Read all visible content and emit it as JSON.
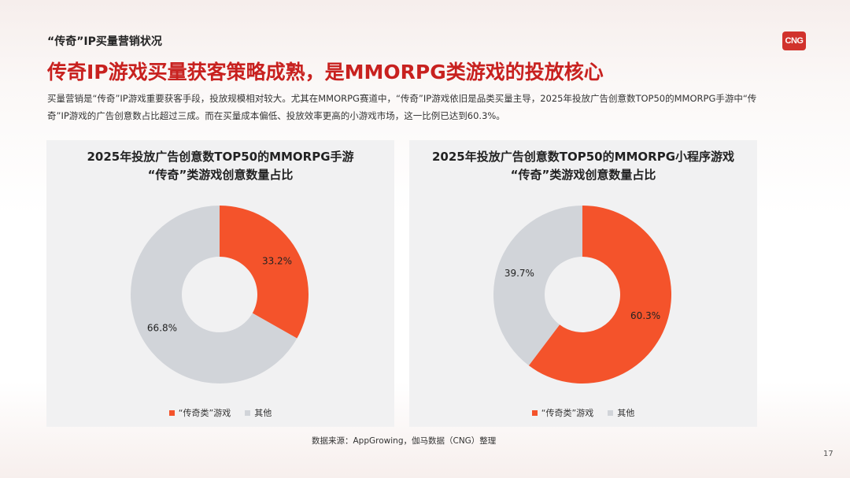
{
  "header": {
    "section_label": "“传奇”IP买量营销状况",
    "logo_text": "CNG",
    "headline": "传奇IP游戏买量获客策略成熟，是MMORPG类游戏的投放核心",
    "body_line1": "买量营销是“传奇”IP游戏重要获客手段，投放规模相对较大。尤其在MMORPG赛道中，“传奇”IP游戏依旧是品类买量主导，2025年投放广告创意数TOP50的MMORPG手游中“传",
    "body_line2": "奇”IP游戏的广告创意数占比超过三成。而在买量成本偏低、投放效率更高的小游戏市场，这一比例已达到60.3%。"
  },
  "colors": {
    "accent": "#f4532b",
    "other": "#d1d4d9",
    "brand": "#c8211f"
  },
  "chart_data": [
    {
      "type": "pie",
      "title_line1": "2025年投放广告创意数TOP50的MMORPG手游",
      "title_line2": "“传奇”类游戏创意数量占比",
      "slices": [
        {
          "label": "“传奇类”游戏",
          "value": 33.2,
          "value_label": "33.2%",
          "color": "#f4532b"
        },
        {
          "label": "其他",
          "value": 66.8,
          "value_label": "66.8%",
          "color": "#d1d4d9"
        }
      ],
      "legend_position": "bottom"
    },
    {
      "type": "pie",
      "title_line1": "2025年投放广告创意数TOP50的MMORPG小程序游戏",
      "title_line2": "“传奇”类游戏创意数量占比",
      "slices": [
        {
          "label": "“传奇类”游戏",
          "value": 60.3,
          "value_label": "60.3%",
          "color": "#f4532b"
        },
        {
          "label": "其他",
          "value": 39.7,
          "value_label": "39.7%",
          "color": "#d1d4d9"
        }
      ],
      "legend_position": "bottom"
    }
  ],
  "footer": {
    "source": "数据来源：AppGrowing，伽马数据（CNG）整理",
    "page_number": "17"
  }
}
